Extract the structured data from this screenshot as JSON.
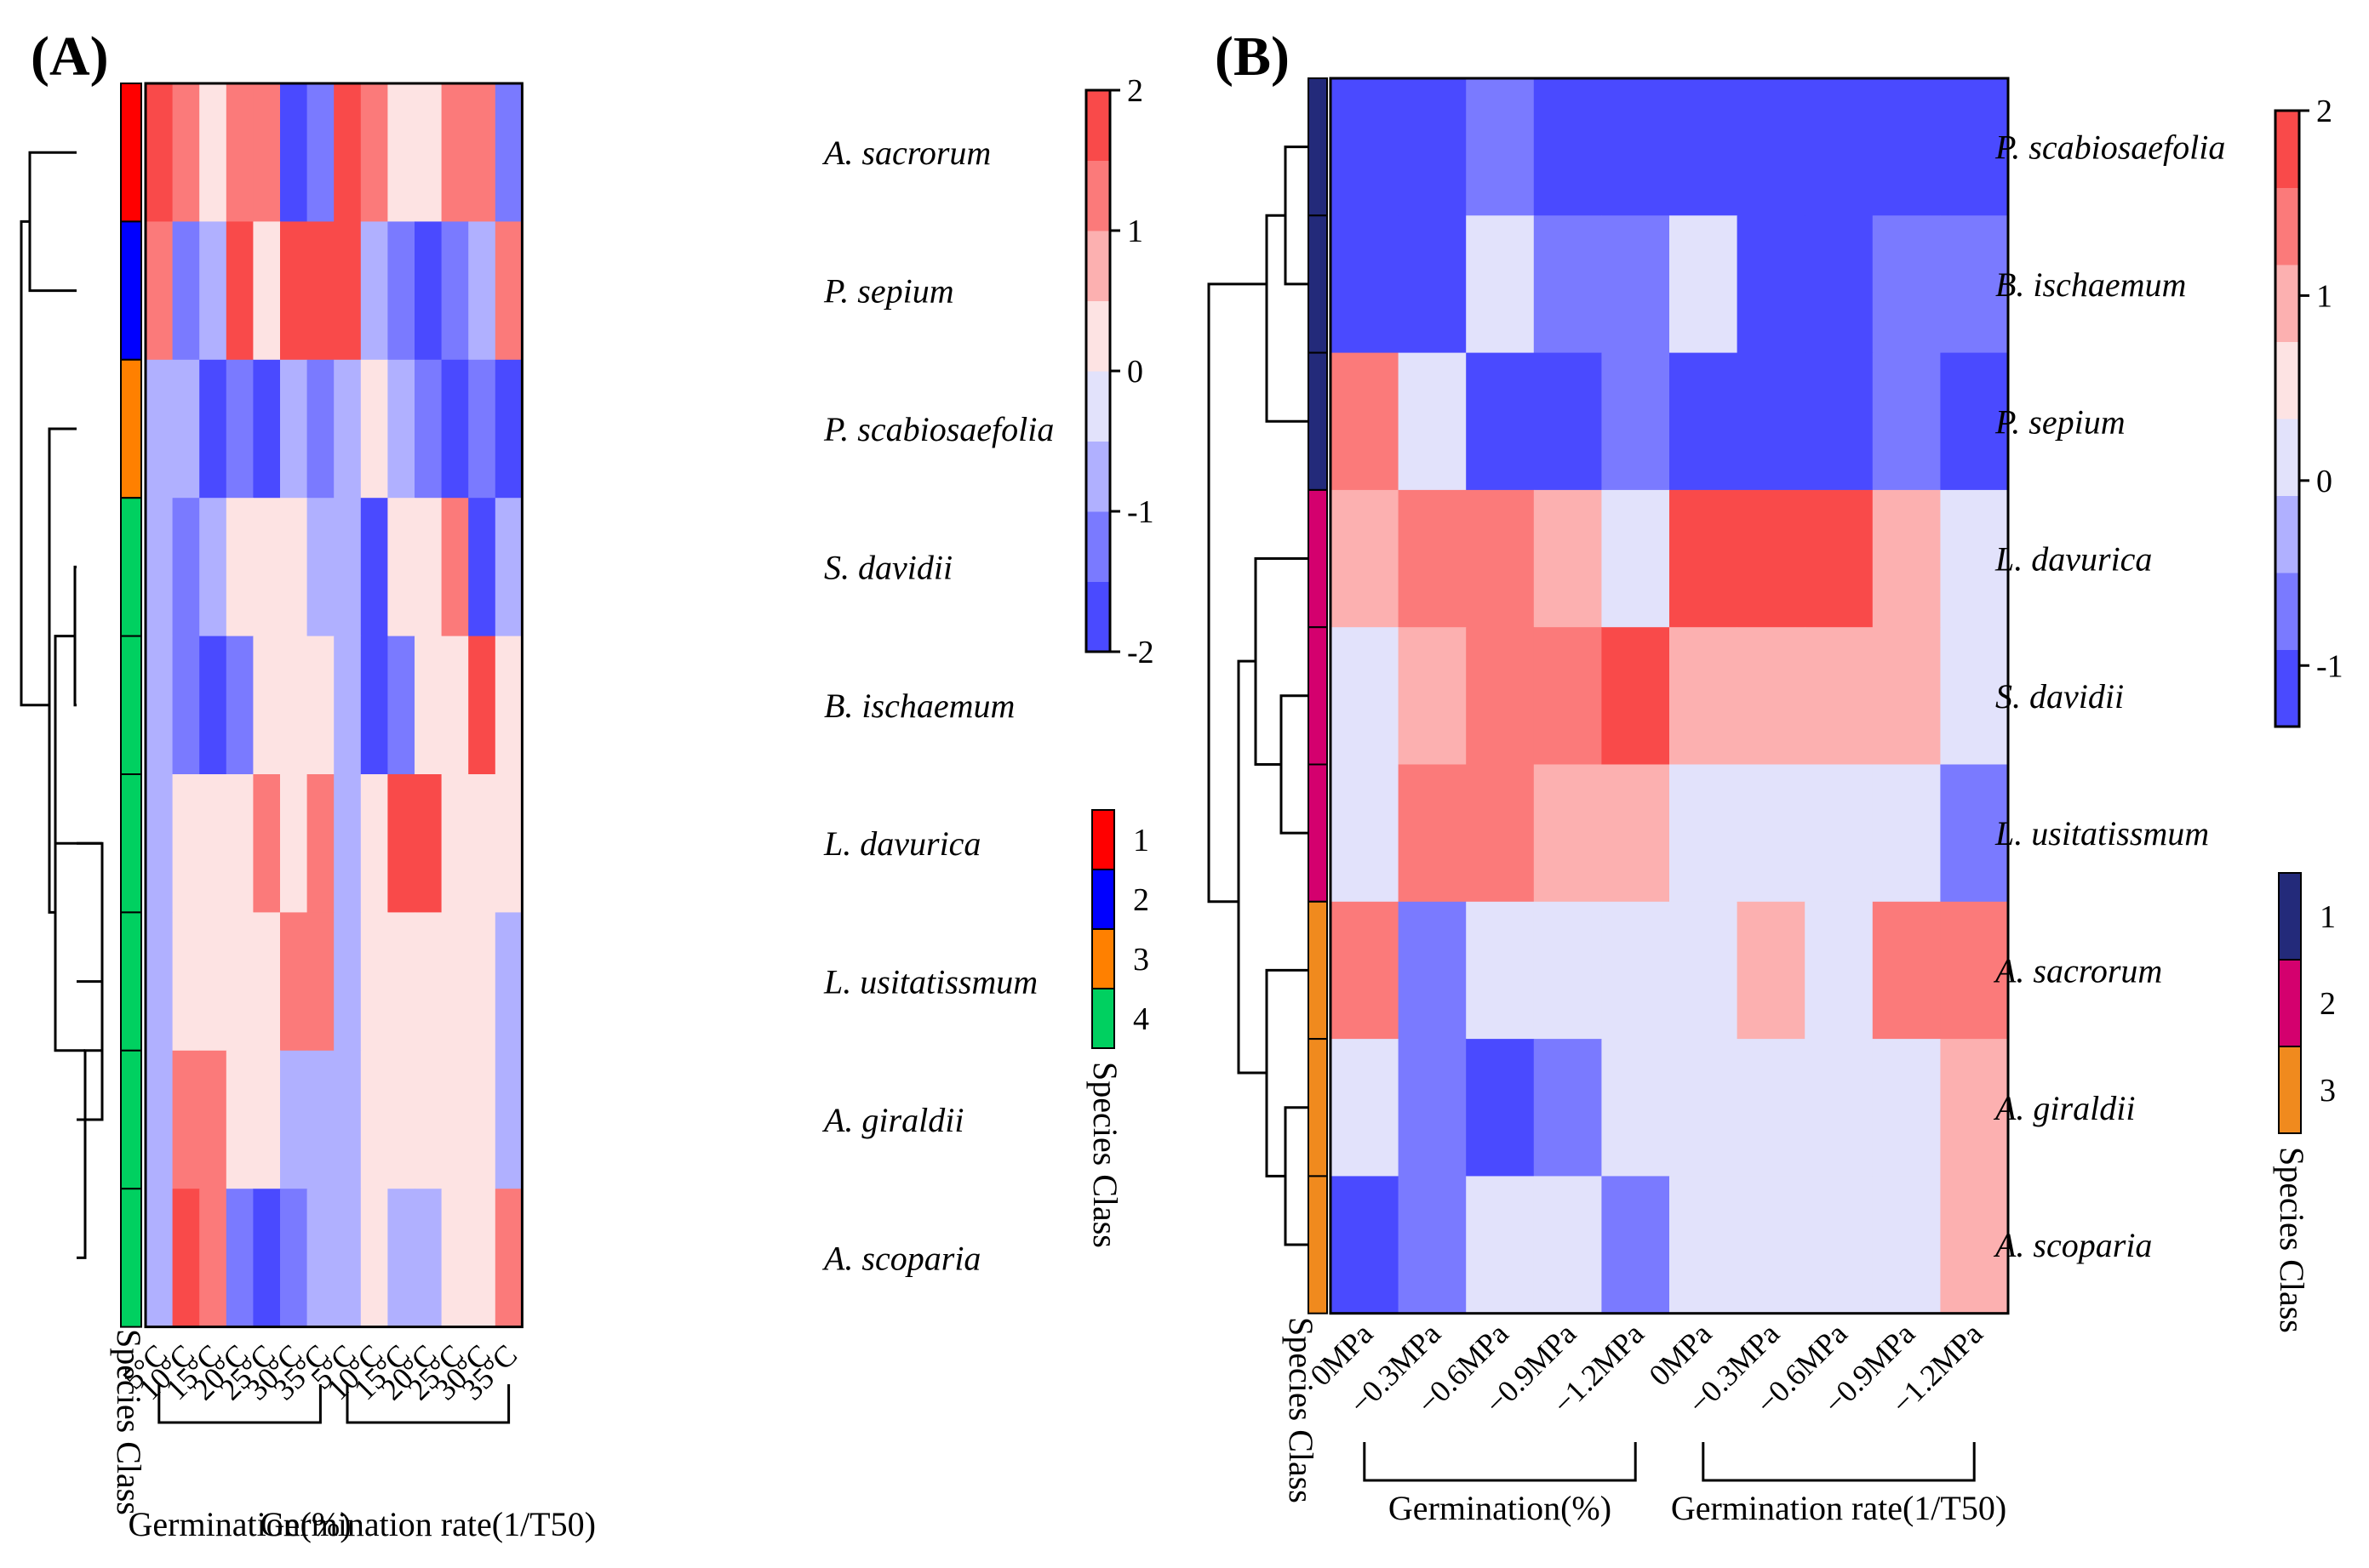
{
  "colors": {
    "scale": [
      "#4a4aff",
      "#7a7aff",
      "#b0b0ff",
      "#e2e2fb",
      "#fde3e3",
      "#fcb0b0",
      "#fb7a7a",
      "#f94a4a"
    ],
    "classes_A": [
      "#ff0000",
      "#0000ff",
      "#ff8000",
      "#00d060"
    ],
    "classes_B": [
      "#232a7a",
      "#d4006e",
      "#f08a1e"
    ]
  },
  "chart_data": [
    {
      "type": "heatmap",
      "panel_label": "(A)",
      "rows": [
        "A. sacrorum",
        "P. sepium",
        "P. scabiosaefolia",
        "S. davidii",
        "B. ischaemum",
        "L. davurica",
        "L. usitatissmum",
        "A. giraldii",
        "A. scoparia"
      ],
      "columns": [
        "5°C",
        "10°C",
        "15°C",
        "20°C",
        "25°C",
        "30°C",
        "35°C",
        "5°C",
        "10°C",
        "15°C",
        "20°C",
        "25°C",
        "30°C",
        "35°C"
      ],
      "column_groups": [
        {
          "label": "Germination(%)",
          "start": 0,
          "end": 6
        },
        {
          "label": "Germination rate(1/T50)",
          "start": 7,
          "end": 13
        }
      ],
      "values": [
        [
          2,
          1,
          0,
          1,
          1,
          -2,
          -1.5,
          2,
          1,
          0,
          0,
          1,
          1,
          -1.5
        ],
        [
          1,
          -1.5,
          -1,
          1.5,
          0.3,
          1.5,
          1.5,
          1.5,
          -1,
          -1.5,
          -2,
          -1.5,
          -1,
          1
        ],
        [
          -1,
          -1,
          -2,
          -1.5,
          -2,
          -1,
          -1.5,
          -1,
          0,
          -1,
          -1.5,
          -2,
          -1.5,
          -2
        ],
        [
          -1,
          -1.5,
          -1,
          0.3,
          0.3,
          0.3,
          -1,
          -1,
          -2,
          0,
          0.3,
          1,
          -2,
          -1
        ],
        [
          -1,
          -1.5,
          -2,
          -1.5,
          0,
          0.3,
          0.3,
          -1,
          -2,
          -1.5,
          0,
          0.3,
          1.5,
          0.3
        ],
        [
          -1,
          0.3,
          0.3,
          0.3,
          1,
          0,
          1,
          -1,
          0.3,
          2,
          1.5,
          0,
          0,
          0.3
        ],
        [
          -1,
          0.3,
          0.3,
          0,
          0,
          1,
          1,
          -1,
          0.3,
          0,
          0,
          0,
          0,
          -1
        ],
        [
          -1,
          1,
          1,
          0,
          0.3,
          -1,
          -1,
          -1,
          0.3,
          0.3,
          0.3,
          0,
          0,
          -1
        ],
        [
          -1,
          1.5,
          1,
          -1.5,
          -2,
          -1.5,
          -1,
          -1,
          0.3,
          -1,
          -1,
          0,
          0,
          1
        ]
      ],
      "species_class": [
        1,
        2,
        3,
        4,
        4,
        4,
        4,
        4,
        4
      ],
      "class_legend": {
        "title": "Species Class",
        "labels": [
          "1",
          "2",
          "3",
          "4"
        ]
      },
      "color_scale": {
        "min": -2,
        "max": 2,
        "ticks": [
          "2",
          "1",
          "0",
          "-1",
          "-2"
        ]
      },
      "row_axis_title": "Species Class"
    },
    {
      "type": "heatmap",
      "panel_label": "(B)",
      "rows": [
        "P. scabiosaefolia",
        "B. ischaemum",
        "P. sepium",
        "L. davurica",
        "S. davidii",
        "L. usitatissmum",
        "A. sacrorum",
        "A. giraldii",
        "A. scoparia"
      ],
      "columns": [
        "0MPa",
        "−0.3MPa",
        "−0.6MPa",
        "−0.9MPa",
        "−1.2MPa",
        "0MPa",
        "−0.3MPa",
        "−0.6MPa",
        "−0.9MPa",
        "−1.2MPa"
      ],
      "column_groups": [
        {
          "label": "Germination(%)",
          "start": 0,
          "end": 4
        },
        {
          "label": "Germination rate(1/T50)",
          "start": 5,
          "end": 9
        }
      ],
      "values": [
        [
          -1.3,
          -1.3,
          -0.8,
          -1.3,
          -1.3,
          -1.3,
          -1.3,
          -1.3,
          -1.8,
          -1.8
        ],
        [
          -1.3,
          -1.3,
          0,
          -0.8,
          -0.8,
          0,
          -1.3,
          -1.3,
          -0.8,
          -0.8
        ],
        [
          1.3,
          0,
          -1.3,
          -1.8,
          -0.8,
          -1.8,
          -1.3,
          -1.3,
          -0.8,
          -1.3
        ],
        [
          0.8,
          1.3,
          1.3,
          0.8,
          0,
          1.8,
          1.8,
          1.8,
          0.8,
          0
        ],
        [
          0.3,
          0.8,
          1.3,
          1.3,
          1.8,
          0.8,
          0.8,
          0.8,
          0.8,
          0.3
        ],
        [
          0,
          1.3,
          1.3,
          0.8,
          0.8,
          0,
          0.3,
          0.3,
          0,
          -0.8
        ],
        [
          1.3,
          -0.8,
          0,
          0.3,
          0,
          0.3,
          0.8,
          0.3,
          1.3,
          1.3
        ],
        [
          0,
          -0.8,
          -1.8,
          -0.8,
          0,
          0.3,
          0,
          0,
          0,
          0.8
        ],
        [
          -1.3,
          -0.8,
          0,
          0,
          -0.8,
          0,
          0.3,
          0.3,
          0.3,
          0.8
        ]
      ],
      "species_class": [
        1,
        1,
        1,
        2,
        2,
        2,
        3,
        3,
        3
      ],
      "class_legend": {
        "title": "Species Class",
        "labels": [
          "1",
          "2",
          "3"
        ]
      },
      "color_scale": {
        "min": -1.33,
        "max": 2.0,
        "ticks": [
          "2",
          "1",
          "0",
          "-1"
        ]
      },
      "row_axis_title": "Species Class"
    }
  ]
}
